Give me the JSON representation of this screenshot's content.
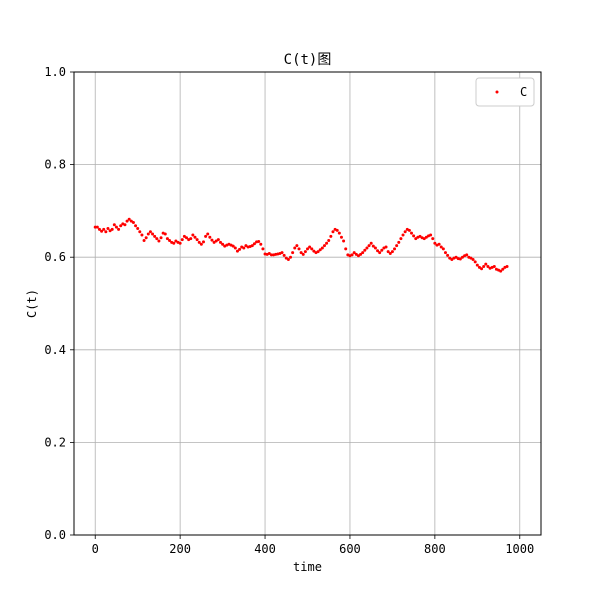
{
  "chart_data": {
    "type": "scatter",
    "title": "C(t)图",
    "xlabel": "time",
    "ylabel": "C(t)",
    "xlim": [
      -50,
      1050
    ],
    "ylim": [
      0,
      1.0
    ],
    "x_ticks": [
      0,
      200,
      400,
      600,
      800,
      1000
    ],
    "y_ticks": [
      0.0,
      0.2,
      0.4,
      0.6,
      0.8,
      1.0
    ],
    "x_tick_labels": [
      "0",
      "200",
      "400",
      "600",
      "800",
      "1000"
    ],
    "y_tick_labels": [
      "0.0",
      "0.2",
      "0.4",
      "0.6",
      "0.8",
      "1.0"
    ],
    "grid": true,
    "legend": {
      "position": "top-right",
      "entries": [
        "C"
      ]
    },
    "series": [
      {
        "name": "C",
        "color": "#ff0000",
        "marker_color": "#ff0000",
        "x_start": 0,
        "x_step": 5,
        "y": [
          0.665,
          0.665,
          0.66,
          0.656,
          0.66,
          0.655,
          0.662,
          0.657,
          0.66,
          0.67,
          0.665,
          0.66,
          0.668,
          0.672,
          0.67,
          0.678,
          0.682,
          0.678,
          0.675,
          0.668,
          0.662,
          0.655,
          0.648,
          0.636,
          0.642,
          0.65,
          0.655,
          0.65,
          0.645,
          0.64,
          0.635,
          0.642,
          0.652,
          0.65,
          0.64,
          0.636,
          0.632,
          0.63,
          0.635,
          0.632,
          0.63,
          0.638,
          0.645,
          0.642,
          0.638,
          0.64,
          0.648,
          0.643,
          0.638,
          0.632,
          0.628,
          0.633,
          0.645,
          0.65,
          0.643,
          0.637,
          0.632,
          0.635,
          0.638,
          0.632,
          0.628,
          0.624,
          0.626,
          0.628,
          0.626,
          0.624,
          0.62,
          0.613,
          0.617,
          0.622,
          0.62,
          0.625,
          0.622,
          0.623,
          0.625,
          0.629,
          0.633,
          0.634,
          0.628,
          0.618,
          0.607,
          0.606,
          0.608,
          0.605,
          0.605,
          0.606,
          0.607,
          0.608,
          0.61,
          0.604,
          0.598,
          0.595,
          0.6,
          0.61,
          0.62,
          0.625,
          0.618,
          0.61,
          0.606,
          0.612,
          0.618,
          0.622,
          0.618,
          0.613,
          0.61,
          0.612,
          0.616,
          0.62,
          0.625,
          0.63,
          0.636,
          0.645,
          0.655,
          0.66,
          0.658,
          0.652,
          0.643,
          0.635,
          0.618,
          0.605,
          0.603,
          0.605,
          0.61,
          0.606,
          0.603,
          0.606,
          0.61,
          0.615,
          0.62,
          0.625,
          0.63,
          0.624,
          0.62,
          0.614,
          0.61,
          0.615,
          0.62,
          0.622,
          0.612,
          0.608,
          0.612,
          0.618,
          0.625,
          0.632,
          0.64,
          0.648,
          0.655,
          0.66,
          0.658,
          0.652,
          0.646,
          0.64,
          0.643,
          0.645,
          0.642,
          0.64,
          0.643,
          0.646,
          0.648,
          0.64,
          0.63,
          0.626,
          0.628,
          0.622,
          0.618,
          0.61,
          0.604,
          0.598,
          0.595,
          0.598,
          0.6,
          0.597,
          0.596,
          0.6,
          0.603,
          0.605,
          0.6,
          0.598,
          0.595,
          0.59,
          0.583,
          0.578,
          0.575,
          0.58,
          0.585,
          0.58,
          0.576,
          0.578,
          0.58,
          0.574,
          0.572,
          0.57,
          0.574,
          0.578,
          0.58
        ]
      }
    ]
  }
}
